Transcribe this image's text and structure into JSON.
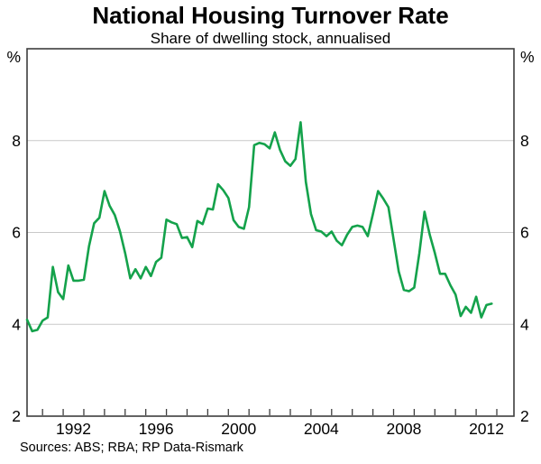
{
  "page": {
    "title": "National Housing Turnover Rate",
    "subtitle": "Share of dwelling stock, annualised",
    "source": "Sources: ABS; RBA; RP Data-Rismark"
  },
  "chart_data": {
    "type": "line",
    "title": "National Housing Turnover Rate",
    "subtitle": "Share of dwelling stock, annualised",
    "source": "Sources: ABS; RBA; RP Data-Rismark",
    "xlabel": "",
    "ylabel": "%",
    "unit_label_left": "%",
    "unit_label_right": "%",
    "xlim": [
      1990.25,
      2013.83
    ],
    "ylim": [
      2,
      10
    ],
    "y_gridlines": [
      4,
      6,
      8
    ],
    "y_axis_labels": [
      2,
      4,
      6,
      8
    ],
    "x_tick_start": 1991,
    "x_tick_end": 2013,
    "x_tick_interval_years": 1,
    "x_year_labels": [
      1992,
      1996,
      2000,
      2004,
      2008,
      2012
    ],
    "grid": true,
    "legend": false,
    "frame_color": "#3d3d3d",
    "gridline_color": "#c9c9c9",
    "x_start": 1990.25,
    "x_step": 0.25,
    "x_frequency": "quarterly",
    "series": [
      {
        "name": "National housing turnover rate (% of dwelling stock, annualised)",
        "color": "#14a24b",
        "values": [
          4.1,
          3.85,
          3.88,
          4.08,
          4.15,
          5.25,
          4.7,
          4.55,
          5.28,
          4.95,
          4.95,
          4.97,
          5.7,
          6.2,
          6.32,
          6.9,
          6.58,
          6.38,
          6.02,
          5.55,
          5.0,
          5.2,
          5.0,
          5.25,
          5.05,
          5.36,
          5.45,
          6.28,
          6.22,
          6.18,
          5.88,
          5.9,
          5.68,
          6.25,
          6.18,
          6.52,
          6.5,
          7.05,
          6.92,
          6.75,
          6.27,
          6.12,
          6.08,
          6.55,
          7.9,
          7.95,
          7.92,
          7.83,
          8.18,
          7.8,
          7.55,
          7.45,
          7.6,
          8.4,
          7.1,
          6.4,
          6.05,
          6.02,
          5.92,
          6.02,
          5.82,
          5.72,
          5.95,
          6.12,
          6.15,
          6.12,
          5.92,
          6.4,
          6.9,
          6.74,
          6.55,
          5.85,
          5.15,
          4.75,
          4.72,
          4.8,
          5.55,
          6.45,
          5.95,
          5.55,
          5.1,
          5.1,
          4.85,
          4.65,
          4.18,
          4.38,
          4.25,
          4.6,
          4.15,
          4.42,
          4.45
        ]
      }
    ]
  }
}
